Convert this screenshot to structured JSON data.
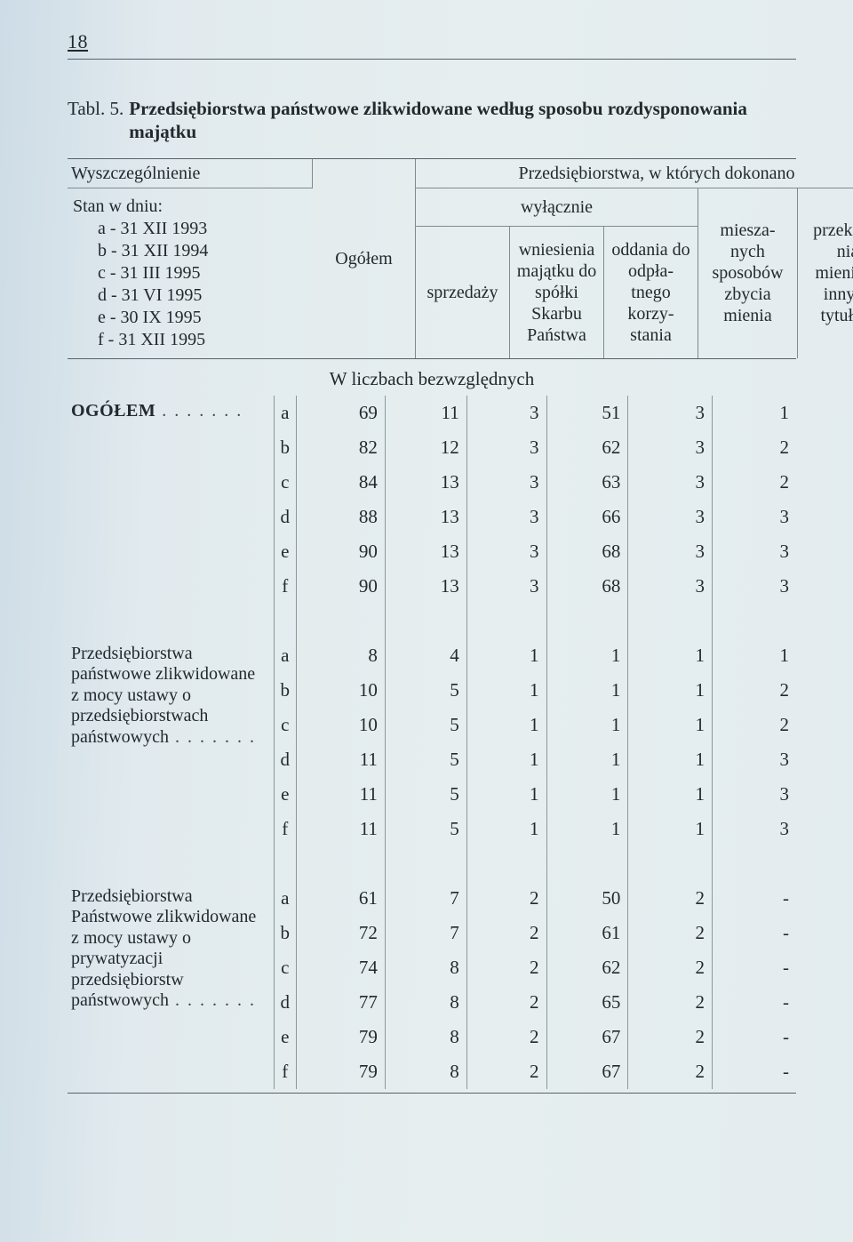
{
  "page_number": "18",
  "table_label": "Tabl. 5.",
  "table_title": "Przedsiębiorstwa państwowe zlikwidowane według sposobu rozdysponowania majątku",
  "header": {
    "wyszczegolnienie": "Wyszczególnienie",
    "stan": "Stan w dniu:",
    "dates": [
      "a - 31 XII 1993",
      "b - 31 XII 1994",
      "c - 31 III 1995",
      "d - 31 VI 1995",
      "e - 30 IX 1995",
      "f - 31 XII 1995"
    ],
    "ogolem": "Ogółem",
    "dokonano": "Przedsiębiorstwa, w których dokonano",
    "wylacznie": "wyłącznie",
    "sprzedazy": "sprzedaży",
    "wniesienia": "wniesienia majątku do spółki Skarbu Państwa",
    "oddania": "oddania do odpła- tnego korzy- stania",
    "mieszanych": "miesza- nych sposobów zbycia mienia",
    "przekazania": "przekaza- nia mienia   z innych tytułów"
  },
  "section_title": "W liczbach bezwzględnych",
  "groups": [
    {
      "label_html": "<span class=\"ogolem-label\">OGÓŁEM</span><span class=\"dots\"></span>",
      "rowspan": 6,
      "rows": [
        {
          "key": "a",
          "vals": [
            "69",
            "11",
            "3",
            "51",
            "3",
            "1"
          ]
        },
        {
          "key": "b",
          "vals": [
            "82",
            "12",
            "3",
            "62",
            "3",
            "2"
          ]
        },
        {
          "key": "c",
          "vals": [
            "84",
            "13",
            "3",
            "63",
            "3",
            "2"
          ]
        },
        {
          "key": "d",
          "vals": [
            "88",
            "13",
            "3",
            "66",
            "3",
            "3"
          ]
        },
        {
          "key": "e",
          "vals": [
            "90",
            "13",
            "3",
            "68",
            "3",
            "3"
          ]
        },
        {
          "key": "f",
          "vals": [
            "90",
            "13",
            "3",
            "68",
            "3",
            "3"
          ]
        }
      ]
    },
    {
      "label_html": "Przedsiębiorstwa państwowe zlikwidowane z mocy ustawy o przedsiębiorstwach państwowych<span class=\"dots\"></span>",
      "rowspan": 6,
      "rows": [
        {
          "key": "a",
          "vals": [
            "8",
            "4",
            "1",
            "1",
            "1",
            "1"
          ]
        },
        {
          "key": "b",
          "vals": [
            "10",
            "5",
            "1",
            "1",
            "1",
            "2"
          ]
        },
        {
          "key": "c",
          "vals": [
            "10",
            "5",
            "1",
            "1",
            "1",
            "2"
          ]
        },
        {
          "key": "d",
          "vals": [
            "11",
            "5",
            "1",
            "1",
            "1",
            "3"
          ]
        },
        {
          "key": "e",
          "vals": [
            "11",
            "5",
            "1",
            "1",
            "1",
            "3"
          ]
        },
        {
          "key": "f",
          "vals": [
            "11",
            "5",
            "1",
            "1",
            "1",
            "3"
          ]
        }
      ]
    },
    {
      "label_html": "Przedsiębiorstwa Państwowe zlikwidowane z mocy ustawy o prywatyzacji przedsiębiorstw państwowych<span class=\"dots\"></span>",
      "rowspan": 6,
      "rows": [
        {
          "key": "a",
          "vals": [
            "61",
            "7",
            "2",
            "50",
            "2",
            "-"
          ]
        },
        {
          "key": "b",
          "vals": [
            "72",
            "7",
            "2",
            "61",
            "2",
            "-"
          ]
        },
        {
          "key": "c",
          "vals": [
            "74",
            "8",
            "2",
            "62",
            "2",
            "-"
          ]
        },
        {
          "key": "d",
          "vals": [
            "77",
            "8",
            "2",
            "65",
            "2",
            "-"
          ]
        },
        {
          "key": "e",
          "vals": [
            "79",
            "8",
            "2",
            "67",
            "2",
            "-"
          ]
        },
        {
          "key": "f",
          "vals": [
            "79",
            "8",
            "2",
            "67",
            "2",
            "-"
          ]
        }
      ]
    }
  ],
  "style": {
    "background": "#e1eaee",
    "rule_color": "#55636a",
    "cell_border": "#8a989d",
    "font_family": "Times New Roman",
    "body_fontsize": 20
  }
}
